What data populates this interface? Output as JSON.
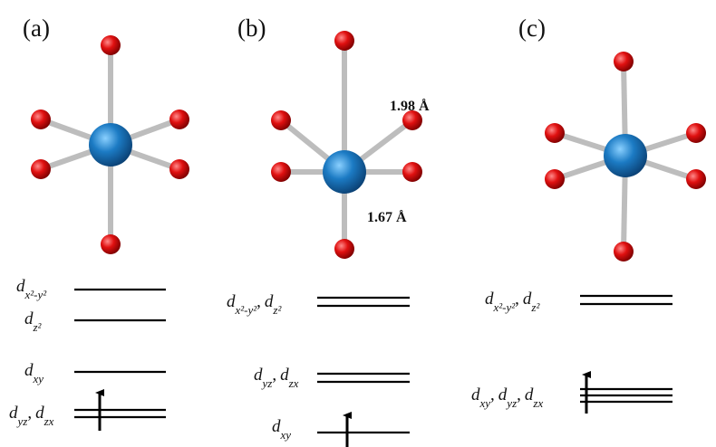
{
  "panels": [
    {
      "label": "(a)",
      "levels": [
        {
          "terms": [
            {
              "base": "d",
              "sub": "x²-y²"
            }
          ]
        },
        {
          "terms": [
            {
              "base": "d",
              "sub": "z²"
            }
          ]
        },
        {
          "terms": [
            {
              "base": "d",
              "sub": "xy"
            }
          ]
        },
        {
          "terms": [
            {
              "base": "d",
              "sub": "yz"
            },
            {
              "base": "d",
              "sub": "zx"
            }
          ]
        }
      ]
    },
    {
      "label": "(b)",
      "bonds": [
        "1.98 Å",
        "1.67 Å"
      ],
      "levels": [
        {
          "terms": [
            {
              "base": "d",
              "sub": "x²-y²"
            },
            {
              "base": "d",
              "sub": "z²"
            }
          ]
        },
        {
          "terms": [
            {
              "base": "d",
              "sub": "yz"
            },
            {
              "base": "d",
              "sub": "zx"
            }
          ]
        },
        {
          "terms": [
            {
              "base": "d",
              "sub": "xy"
            }
          ]
        }
      ]
    },
    {
      "label": "(c)",
      "levels": [
        {
          "terms": [
            {
              "base": "d",
              "sub": "x²-y²"
            },
            {
              "base": "d",
              "sub": "z²"
            }
          ]
        },
        {
          "terms": [
            {
              "base": "d",
              "sub": "xy"
            },
            {
              "base": "d",
              "sub": "yz"
            },
            {
              "base": "d",
              "sub": "zx"
            }
          ]
        }
      ]
    }
  ],
  "separator": ","
}
